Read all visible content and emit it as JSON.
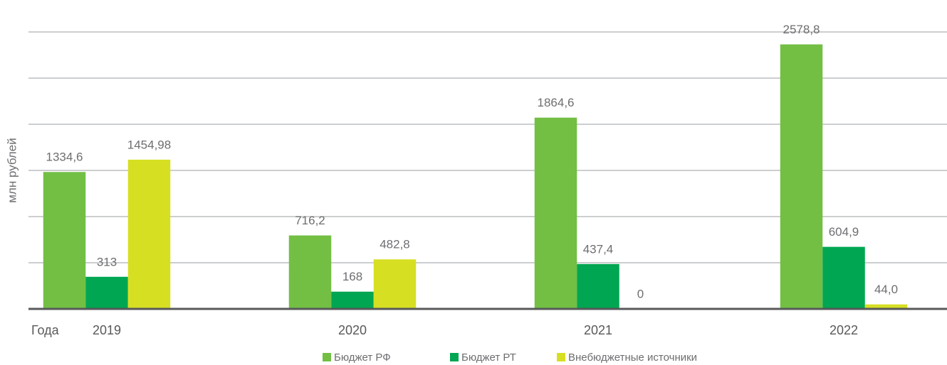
{
  "chart_data": {
    "type": "bar",
    "y_label": "млн рублей",
    "x_label": "Года",
    "categories": [
      "2019",
      "2020",
      "2021",
      "2022"
    ],
    "series": [
      {
        "name": "Бюджет РФ",
        "color": "#72bf44",
        "values": [
          1334.6,
          716.2,
          1864.6,
          2578.8
        ],
        "value_labels": [
          "1334,6",
          "716,2",
          "1864,6",
          "2578,8"
        ]
      },
      {
        "name": "Бюджет РТ",
        "color": "#00a651",
        "values": [
          313,
          168,
          437.4,
          604.9
        ],
        "value_labels": [
          "313",
          "168",
          "437,4",
          "604,9"
        ]
      },
      {
        "name": "Внебюджетные источники",
        "color": "#d7df23",
        "values": [
          1454.98,
          482.8,
          0,
          44.0
        ],
        "value_labels": [
          "1454,98",
          "482,8",
          "0",
          "44,0"
        ]
      }
    ],
    "ylim": [
      0,
      2700
    ],
    "yticks": [
      0,
      450,
      900,
      1350,
      1800,
      2250,
      2700
    ],
    "grid": true
  }
}
